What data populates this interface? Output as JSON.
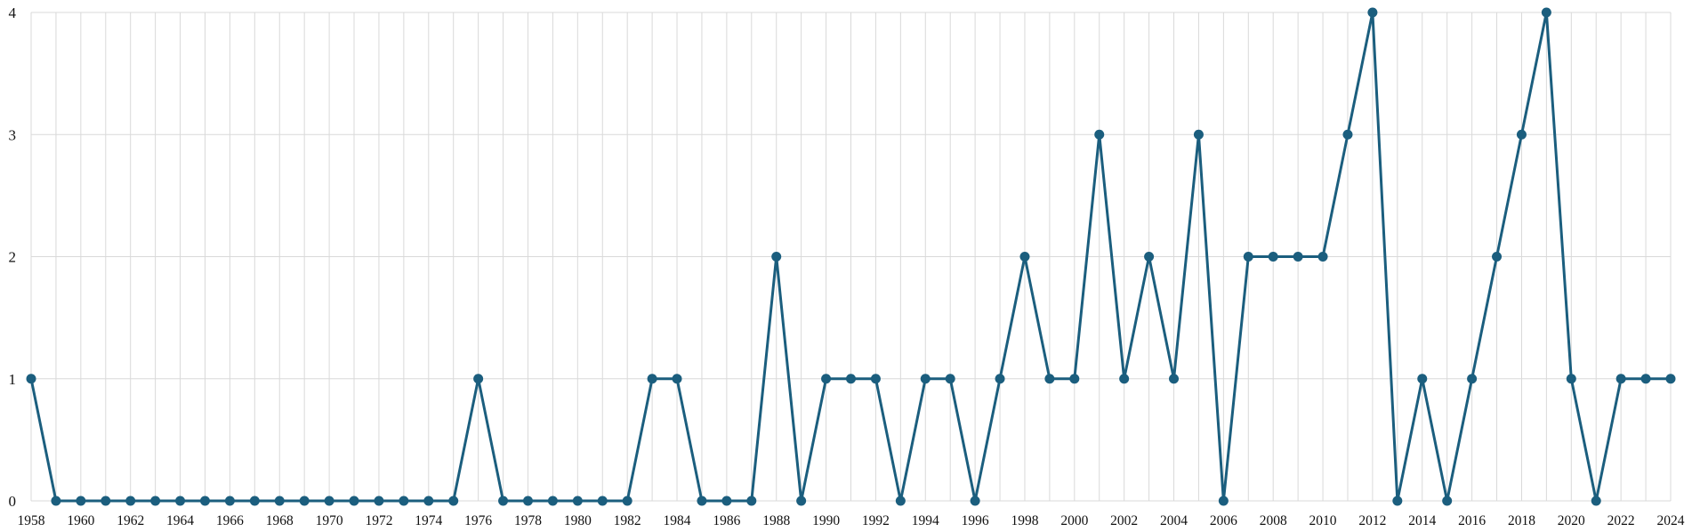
{
  "chart_data": {
    "type": "line",
    "title": "",
    "xlabel": "",
    "ylabel": "",
    "x": [
      1958,
      1959,
      1960,
      1961,
      1962,
      1963,
      1964,
      1965,
      1966,
      1967,
      1968,
      1969,
      1970,
      1971,
      1972,
      1973,
      1974,
      1975,
      1976,
      1977,
      1978,
      1979,
      1980,
      1981,
      1982,
      1983,
      1984,
      1985,
      1986,
      1987,
      1988,
      1989,
      1990,
      1991,
      1992,
      1993,
      1994,
      1995,
      1996,
      1997,
      1998,
      1999,
      2000,
      2001,
      2002,
      2003,
      2004,
      2005,
      2006,
      2007,
      2008,
      2009,
      2010,
      2011,
      2012,
      2013,
      2014,
      2015,
      2016,
      2017,
      2018,
      2019,
      2020,
      2021,
      2022,
      2023,
      2024
    ],
    "series": [
      {
        "values": [
          1,
          0,
          0,
          0,
          0,
          0,
          0,
          0,
          0,
          0,
          0,
          0,
          0,
          0,
          0,
          0,
          0,
          0,
          1,
          0,
          0,
          0,
          0,
          0,
          0,
          1,
          1,
          0,
          0,
          0,
          2,
          0,
          1,
          1,
          1,
          0,
          1,
          1,
          0,
          1,
          2,
          1,
          1,
          3,
          1,
          2,
          1,
          3,
          0,
          2,
          2,
          2,
          2,
          3,
          4,
          0,
          1,
          0,
          1,
          2,
          3,
          4,
          1,
          0,
          1,
          1,
          1
        ]
      }
    ],
    "xlim": [
      1958,
      2024
    ],
    "ylim": [
      0,
      4
    ],
    "x_tick_labels": [
      "1958",
      "1960",
      "1962",
      "1964",
      "1966",
      "1968",
      "1970",
      "1972",
      "1974",
      "1976",
      "1978",
      "1980",
      "1982",
      "1984",
      "1986",
      "1988",
      "1990",
      "1992",
      "1994",
      "1996",
      "1998",
      "2000",
      "2002",
      "2004",
      "2006",
      "2008",
      "2010",
      "2012",
      "2014",
      "2016",
      "2018",
      "2020",
      "2022",
      "2024"
    ],
    "y_tick_labels": [
      "0",
      "1",
      "2",
      "3",
      "4"
    ],
    "grid": true,
    "legend": "none",
    "colors": {
      "line": "#1b5e7e",
      "marker": "#1b5e7e",
      "grid": "#d9d9d9"
    }
  }
}
